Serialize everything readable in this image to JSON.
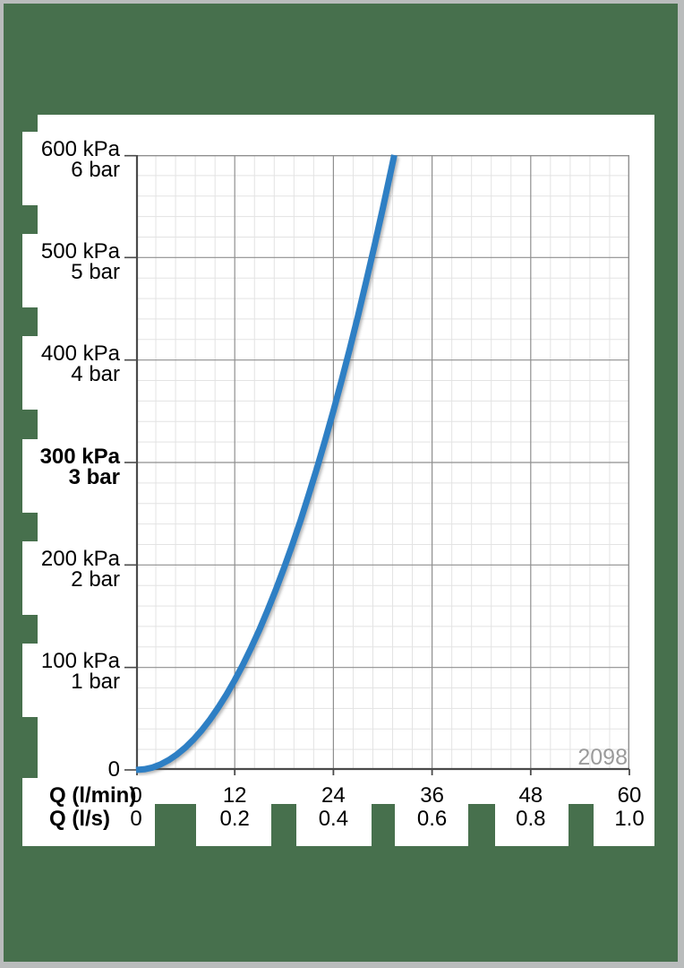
{
  "colors": {
    "background_green": "#47704d",
    "frame_gray": "#b9bcbc",
    "panel_white": "#ffffff",
    "curve_blue": "#2e7fc4",
    "grid_major": "#8f8f8f",
    "grid_minor": "#e3e3e3",
    "axis_dark": "#4a4a4a",
    "text_black": "#000000",
    "watermark_gray": "#9b9b9b"
  },
  "chart_data": {
    "type": "line",
    "grid": true,
    "legend": "none",
    "watermark": "2098",
    "x_axis": {
      "row1_label": "Q (l/min)",
      "row2_label": "Q (l/s)",
      "row1_ticks": [
        "0",
        "12",
        "24",
        "36",
        "48",
        "60"
      ],
      "row2_ticks": [
        "0",
        "0.2",
        "0.4",
        "0.6",
        "0.8",
        "1.0"
      ],
      "range_lmin": [
        0,
        60
      ],
      "major_step_lmin": 12,
      "minor_per_major": 5
    },
    "y_axis": {
      "ticks": [
        {
          "kpa": "600 kPa",
          "bar": "6 bar",
          "value": 600,
          "bold": false
        },
        {
          "kpa": "500 kPa",
          "bar": "5 bar",
          "value": 500,
          "bold": false
        },
        {
          "kpa": "400 kPa",
          "bar": "4 bar",
          "value": 400,
          "bold": false
        },
        {
          "kpa": "300 kPa",
          "bar": "3 bar",
          "value": 300,
          "bold": true
        },
        {
          "kpa": "200 kPa",
          "bar": "2 bar",
          "value": 200,
          "bold": false
        },
        {
          "kpa": "100 kPa",
          "bar": "1 bar",
          "value": 100,
          "bold": false
        }
      ],
      "zero_label": "0",
      "range_kpa": [
        0,
        600
      ],
      "major_step_kpa": 100,
      "minor_per_major": 5
    },
    "series": [
      {
        "name": "pressure-drop-curve",
        "color": "#2e7fc4",
        "q_lmin": [
          0,
          1,
          2,
          3,
          4,
          5,
          6,
          7,
          8,
          9,
          10,
          11,
          12,
          13,
          14,
          15,
          16,
          17,
          18,
          19,
          20,
          21,
          22,
          23,
          24,
          25,
          26,
          27,
          28,
          29,
          30,
          31,
          31.4
        ],
        "p_kpa": [
          0,
          0.6,
          2.4,
          5.5,
          9.7,
          15.2,
          21.9,
          29.8,
          38.9,
          49.3,
          60.9,
          73.6,
          87.6,
          102.8,
          119.3,
          136.9,
          155.8,
          175.9,
          197.2,
          219.7,
          243.4,
          268.4,
          294.5,
          321.9,
          350.5,
          380.3,
          411.3,
          443.6,
          477.1,
          511.7,
          547.7,
          584.8,
          600
        ]
      }
    ]
  }
}
